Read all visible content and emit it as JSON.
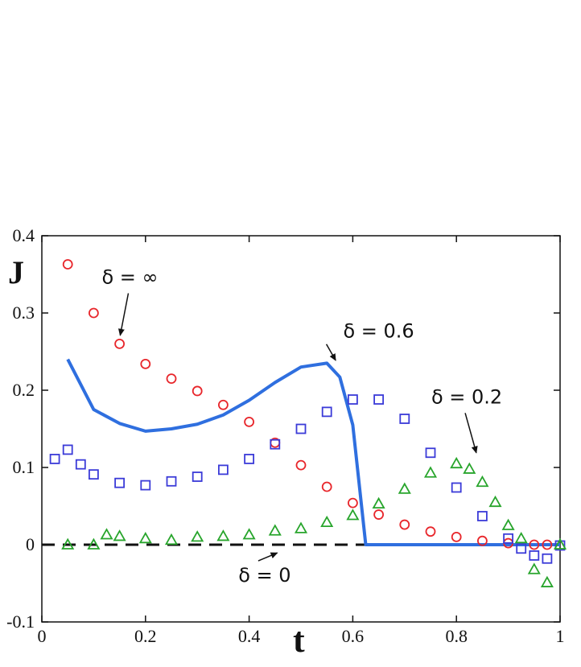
{
  "chart_data": {
    "type": "scatter",
    "xlabel": "t",
    "ylabel": "J",
    "xlim": [
      0,
      1
    ],
    "ylim": [
      -0.1,
      0.4
    ],
    "x_ticks": [
      "0",
      "0.2",
      "0.4",
      "0.6",
      "0.8",
      "1"
    ],
    "y_ticks": [
      "-0.1",
      "0",
      "0.1",
      "0.2",
      "0.3",
      "0.4"
    ],
    "grid": false,
    "series": [
      {
        "marker": "circle",
        "color": "#e8262b",
        "points": [
          [
            0.05,
            0.363
          ],
          [
            0.1,
            0.3
          ],
          [
            0.15,
            0.26
          ],
          [
            0.2,
            0.234
          ],
          [
            0.25,
            0.215
          ],
          [
            0.3,
            0.199
          ],
          [
            0.35,
            0.181
          ],
          [
            0.4,
            0.159
          ],
          [
            0.45,
            0.132
          ],
          [
            0.5,
            0.103
          ],
          [
            0.55,
            0.075
          ],
          [
            0.6,
            0.054
          ],
          [
            0.65,
            0.039
          ],
          [
            0.7,
            0.026
          ],
          [
            0.75,
            0.017
          ],
          [
            0.8,
            0.01
          ],
          [
            0.85,
            0.005
          ],
          [
            0.9,
            0.002
          ],
          [
            0.95,
            0.0
          ],
          [
            0.975,
            0.0
          ]
        ]
      },
      {
        "marker": "square",
        "color": "#3b3bd8",
        "points": [
          [
            0.025,
            0.111
          ],
          [
            0.05,
            0.123
          ],
          [
            0.075,
            0.104
          ],
          [
            0.1,
            0.091
          ],
          [
            0.15,
            0.08
          ],
          [
            0.2,
            0.077
          ],
          [
            0.25,
            0.082
          ],
          [
            0.3,
            0.088
          ],
          [
            0.35,
            0.097
          ],
          [
            0.4,
            0.111
          ],
          [
            0.45,
            0.13
          ],
          [
            0.5,
            0.15
          ],
          [
            0.55,
            0.172
          ],
          [
            0.6,
            0.188
          ],
          [
            0.65,
            0.188
          ],
          [
            0.7,
            0.163
          ],
          [
            0.75,
            0.119
          ],
          [
            0.8,
            0.074
          ],
          [
            0.85,
            0.037
          ],
          [
            0.9,
            0.008
          ],
          [
            0.925,
            -0.005
          ],
          [
            0.95,
            -0.014
          ],
          [
            0.975,
            -0.018
          ],
          [
            1.0,
            -0.001
          ]
        ]
      },
      {
        "marker": "triangle",
        "color": "#28a52c",
        "points": [
          [
            0.05,
            0.0
          ],
          [
            0.1,
            0.0
          ],
          [
            0.125,
            0.013
          ],
          [
            0.15,
            0.011
          ],
          [
            0.2,
            0.008
          ],
          [
            0.25,
            0.006
          ],
          [
            0.3,
            0.01
          ],
          [
            0.35,
            0.011
          ],
          [
            0.4,
            0.013
          ],
          [
            0.45,
            0.018
          ],
          [
            0.5,
            0.021
          ],
          [
            0.55,
            0.029
          ],
          [
            0.6,
            0.038
          ],
          [
            0.65,
            0.053
          ],
          [
            0.7,
            0.072
          ],
          [
            0.75,
            0.093
          ],
          [
            0.8,
            0.105
          ],
          [
            0.825,
            0.098
          ],
          [
            0.85,
            0.081
          ],
          [
            0.875,
            0.055
          ],
          [
            0.9,
            0.025
          ],
          [
            0.925,
            0.008
          ],
          [
            0.95,
            -0.032
          ],
          [
            0.975,
            -0.049
          ],
          [
            1.0,
            0.0
          ]
        ]
      },
      {
        "marker": "line",
        "color": "#2f6fdf",
        "points": [
          [
            0.05,
            0.24
          ],
          [
            0.1,
            0.175
          ],
          [
            0.15,
            0.157
          ],
          [
            0.2,
            0.147
          ],
          [
            0.25,
            0.15
          ],
          [
            0.3,
            0.156
          ],
          [
            0.35,
            0.168
          ],
          [
            0.4,
            0.187
          ],
          [
            0.45,
            0.21
          ],
          [
            0.5,
            0.23
          ],
          [
            0.55,
            0.235
          ],
          [
            0.575,
            0.217
          ],
          [
            0.6,
            0.155
          ],
          [
            0.625,
            0.0
          ],
          [
            1.0,
            0.0
          ]
        ]
      },
      {
        "marker": "dashed",
        "color": "#111111",
        "points": [
          [
            0,
            0
          ],
          [
            1,
            0
          ]
        ]
      }
    ],
    "annotations": [
      {
        "label": "δ = ∞",
        "tx": 0.17,
        "ty": 0.338,
        "ax": 0.15,
        "ay": 0.267
      },
      {
        "label": "δ = 0.6",
        "tx": 0.65,
        "ty": 0.268,
        "ax": 0.57,
        "ay": 0.235
      },
      {
        "label": "δ = 0.2",
        "tx": 0.82,
        "ty": 0.183,
        "ax": 0.84,
        "ay": 0.115
      },
      {
        "label": "δ = 0",
        "tx": 0.43,
        "ty": -0.048,
        "ax": 0.46,
        "ay": -0.009
      }
    ]
  }
}
